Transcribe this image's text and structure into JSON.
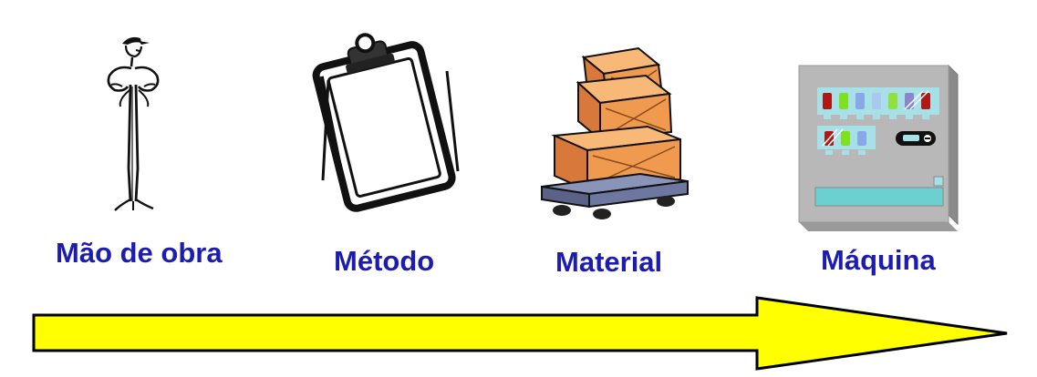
{
  "labels": {
    "mao_de_obra": "Mão de obra",
    "metodo": "Método",
    "material": "Material",
    "maquina": "Máquina"
  },
  "colors": {
    "label": "#1c1cb0",
    "arrow_fill": "#ffff00",
    "arrow_stroke": "#000000",
    "box_light": "#f8b878",
    "box_mid": "#f09a50",
    "box_dark": "#d8783a",
    "machine_body": "#b8b8b8",
    "machine_panel": "#a8e0e8",
    "machine_slot": "#6cd0d0"
  },
  "icons": {
    "worker": "worker-icon",
    "clipboard": "clipboard-icon",
    "boxes": "boxes-cart-icon",
    "machine": "vending-machine-icon"
  }
}
